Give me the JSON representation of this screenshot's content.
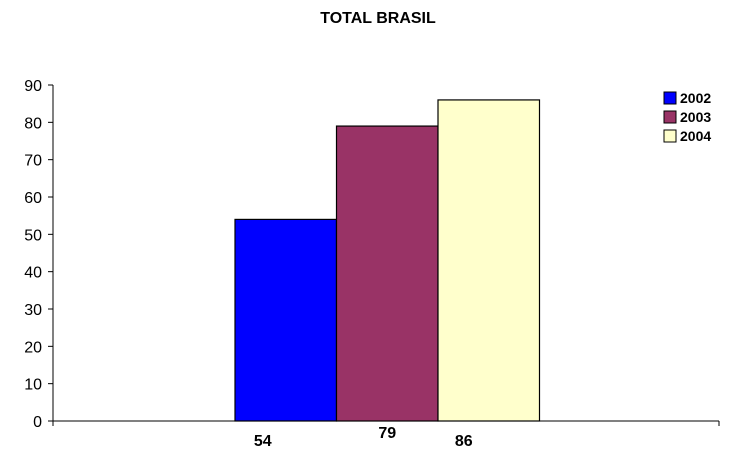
{
  "chart_data": {
    "type": "bar",
    "title": "TOTAL BRASIL",
    "xlabel": "",
    "ylabel": "",
    "ylim": [
      0,
      90
    ],
    "yticks": [
      0,
      10,
      20,
      30,
      40,
      50,
      60,
      70,
      80,
      90
    ],
    "grid": false,
    "legend_position": "top-right",
    "series": [
      {
        "name": "2002",
        "value": 54,
        "label": "54",
        "color": "#0000FF"
      },
      {
        "name": "2003",
        "value": 79,
        "label": "79",
        "color": "#993366"
      },
      {
        "name": "2004",
        "value": 86,
        "label": "86",
        "color": "#FFFFCC"
      }
    ]
  }
}
